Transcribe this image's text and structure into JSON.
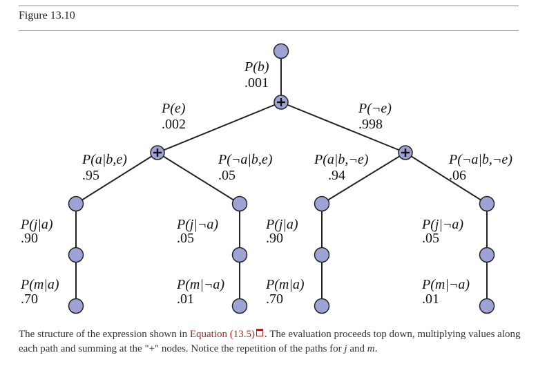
{
  "figure": {
    "title": "Figure 13.10"
  },
  "tree": {
    "root": {
      "label": "P(b)",
      "value": ".001"
    },
    "plus_symbol": "+",
    "left_branch": {
      "label": "P(e)",
      "value": ".002"
    },
    "right_branch": {
      "label": "P(¬e)",
      "value": ".998"
    },
    "edges": [
      {
        "id": "left-left",
        "label": "P(a|b,e)",
        "value": ".95"
      },
      {
        "id": "left-right",
        "label": "P(¬a|b,e)",
        "value": ".05"
      },
      {
        "id": "right-left",
        "label": "P(a|b,¬e)",
        "value": ".94"
      },
      {
        "id": "right-right",
        "label": "P(¬a|b,¬e)",
        "value": ".06"
      }
    ],
    "chains": [
      {
        "j_label": "P(j|a)",
        "j_value": ".90",
        "m_label": "P(m|a)",
        "m_value": ".70"
      },
      {
        "j_label": "P(j|¬a)",
        "j_value": ".05",
        "m_label": "P(m|¬a)",
        "m_value": ".01"
      },
      {
        "j_label": "P(j|a)",
        "j_value": ".90",
        "m_label": "P(m|a)",
        "m_value": ".70"
      },
      {
        "j_label": "P(j|¬a)",
        "j_value": ".05",
        "m_label": "P(m|¬a)",
        "m_value": ".01"
      }
    ]
  },
  "caption": {
    "before_link": "The structure of the expression shown in ",
    "link_text": "Equation (13.5)",
    "after_link": ". The evaluation proceeds top down, multiplying values along each path and summing at the \"+\" nodes. Notice the repetition of the paths for ",
    "var_j": "j",
    "and_text": " and ",
    "var_m": "m",
    "end_text": "."
  },
  "colors": {
    "node_fill": "#9ea3d6",
    "node_stroke": "#222222",
    "link": "#b0241c"
  }
}
